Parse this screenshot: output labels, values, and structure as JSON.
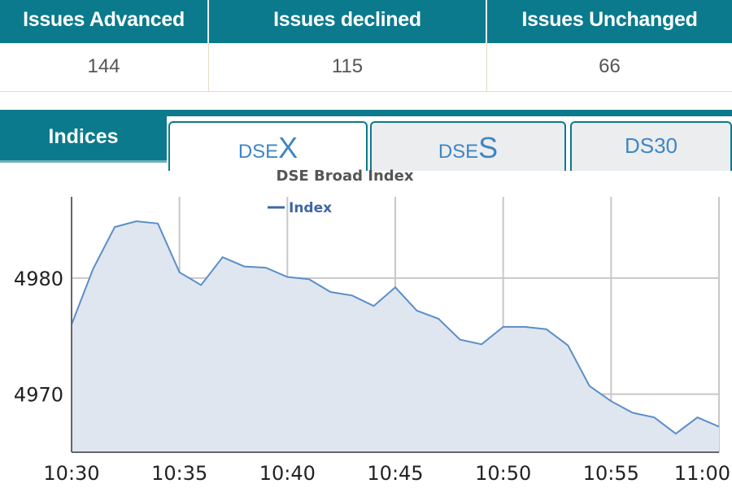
{
  "issues": {
    "headers": [
      "Issues Advanced",
      "Issues declined",
      "Issues Unchanged"
    ],
    "values": [
      "144",
      "115",
      "66"
    ]
  },
  "tabs": {
    "indices_label": "Indices",
    "items": [
      {
        "prefix": "DSE",
        "suffix": "X",
        "active": true
      },
      {
        "prefix": "DSE",
        "suffix": "S",
        "active": false
      },
      {
        "prefix": "DS30",
        "suffix": "",
        "active": false
      }
    ]
  },
  "colors": {
    "teal": "#0b7a8d",
    "line": "#5b8ec9",
    "area": "#dfe6f0",
    "tab_text": "#3f86c4"
  },
  "chart_data": {
    "type": "area",
    "title": "DSE Broad Index",
    "legend": "Index",
    "x_ticks": [
      "10:30",
      "10:35",
      "10:40",
      "10:45",
      "10:50",
      "10:55",
      "11:00"
    ],
    "y_ticks": [
      4970,
      4980
    ],
    "xlim": [
      "10:30",
      "11:00"
    ],
    "ylim": [
      4965,
      4987
    ],
    "grid": true,
    "series": [
      {
        "name": "Index",
        "x": [
          "10:30",
          "10:31",
          "10:32",
          "10:33",
          "10:34",
          "10:35",
          "10:36",
          "10:37",
          "10:38",
          "10:39",
          "10:40",
          "10:41",
          "10:42",
          "10:43",
          "10:44",
          "10:45",
          "10:46",
          "10:47",
          "10:48",
          "10:49",
          "10:50",
          "10:51",
          "10:52",
          "10:53",
          "10:54",
          "10:55",
          "10:56",
          "10:57",
          "10:58",
          "10:59",
          "11:00"
        ],
        "values": [
          4976.0,
          4980.8,
          4984.4,
          4984.9,
          4984.7,
          4980.5,
          4979.4,
          4981.8,
          4981.0,
          4980.9,
          4980.1,
          4979.9,
          4978.8,
          4978.5,
          4977.6,
          4979.2,
          4977.2,
          4976.5,
          4974.7,
          4974.3,
          4975.8,
          4975.8,
          4975.6,
          4974.2,
          4970.7,
          4969.4,
          4968.4,
          4968.0,
          4966.6,
          4968.0,
          4967.2
        ]
      }
    ]
  }
}
